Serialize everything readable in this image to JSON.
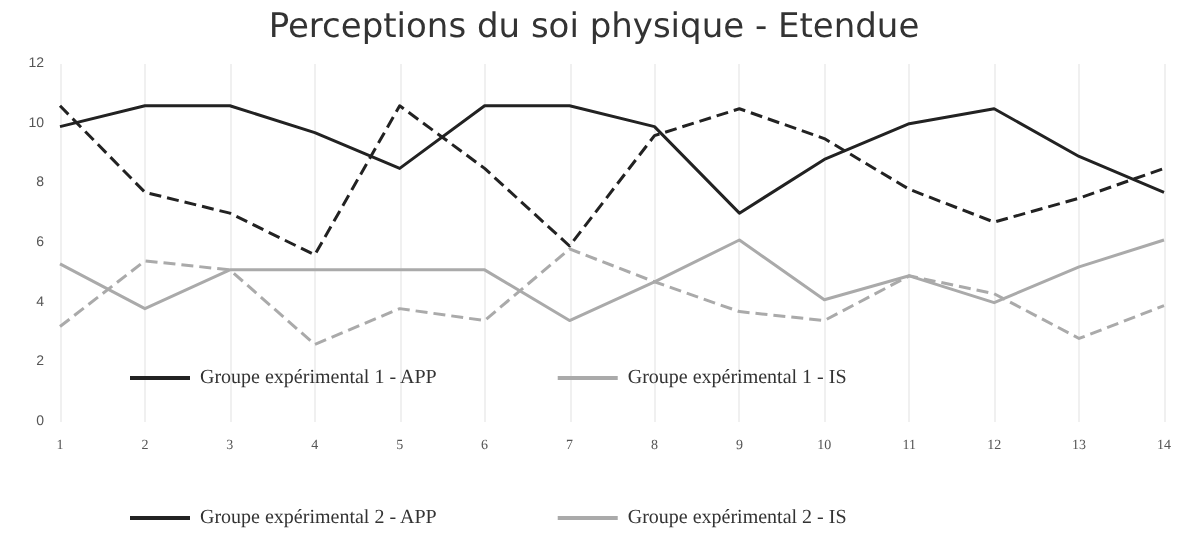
{
  "chart_data": {
    "type": "line",
    "title": "Perceptions du soi physique - Etendue",
    "categories": [
      "1",
      "2",
      "3",
      "4",
      "5",
      "6",
      "7",
      "8",
      "9",
      "10",
      "11",
      "12",
      "13",
      "14"
    ],
    "series": [
      {
        "name": "Groupe expérimental 1 - APP",
        "color": "#222222",
        "line_style": "solid",
        "values": [
          9.9,
          10.6,
          10.6,
          9.7,
          8.5,
          10.6,
          10.6,
          9.9,
          7.0,
          8.8,
          10.0,
          10.5,
          8.9,
          7.7
        ]
      },
      {
        "name": "Groupe expérimental 1 - IS",
        "color": "#aaaaaa",
        "line_style": "solid",
        "values": [
          5.3,
          3.8,
          5.1,
          5.1,
          5.1,
          5.1,
          3.4,
          4.7,
          6.1,
          4.1,
          4.9,
          4.0,
          5.2,
          6.1
        ]
      },
      {
        "name": "Groupe expérimental 2 - APP",
        "color": "#222222",
        "line_style": "dashed",
        "values": [
          10.6,
          7.7,
          7.0,
          5.6,
          10.6,
          8.5,
          5.9,
          9.6,
          10.5,
          9.5,
          7.8,
          6.7,
          7.5,
          8.5
        ]
      },
      {
        "name": "Groupe expérimental 2 - IS",
        "color": "#aaaaaa",
        "line_style": "dashed",
        "values": [
          3.2,
          5.4,
          5.1,
          2.6,
          3.8,
          3.4,
          5.8,
          4.7,
          3.7,
          3.4,
          4.9,
          4.3,
          2.8,
          3.9
        ]
      }
    ],
    "ylim": [
      0,
      12
    ],
    "yticks": [
      0,
      2,
      4,
      6,
      8,
      10,
      12
    ],
    "grid": "x",
    "legend": "bottom",
    "marker": "none"
  }
}
